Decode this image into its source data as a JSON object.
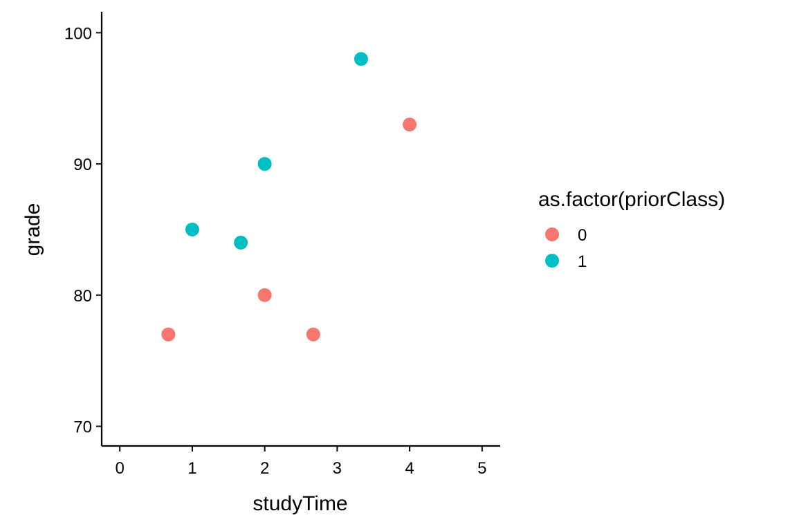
{
  "chart_data": {
    "type": "scatter",
    "title": "",
    "xlabel": "studyTime",
    "ylabel": "grade",
    "xlim": [
      -0.25,
      5.25
    ],
    "ylim": [
      68.5,
      101.6
    ],
    "xticks": [
      0,
      1,
      2,
      3,
      4,
      5
    ],
    "yticks": [
      70,
      80,
      90,
      100
    ],
    "grid": false,
    "legend": {
      "title": "as.factor(priorClass)",
      "placement": "right",
      "entries": [
        {
          "label": "0",
          "color": "#F8766D"
        },
        {
          "label": "1",
          "color": "#00BFC4"
        }
      ]
    },
    "series": [
      {
        "name": "0",
        "color": "#F8766D",
        "points": [
          {
            "x": 0.67,
            "y": 77
          },
          {
            "x": 2.0,
            "y": 80
          },
          {
            "x": 2.67,
            "y": 77
          },
          {
            "x": 4.0,
            "y": 93
          }
        ]
      },
      {
        "name": "1",
        "color": "#00BFC4",
        "points": [
          {
            "x": 1.0,
            "y": 85
          },
          {
            "x": 1.67,
            "y": 84
          },
          {
            "x": 2.0,
            "y": 90
          },
          {
            "x": 3.33,
            "y": 98
          }
        ]
      }
    ]
  }
}
